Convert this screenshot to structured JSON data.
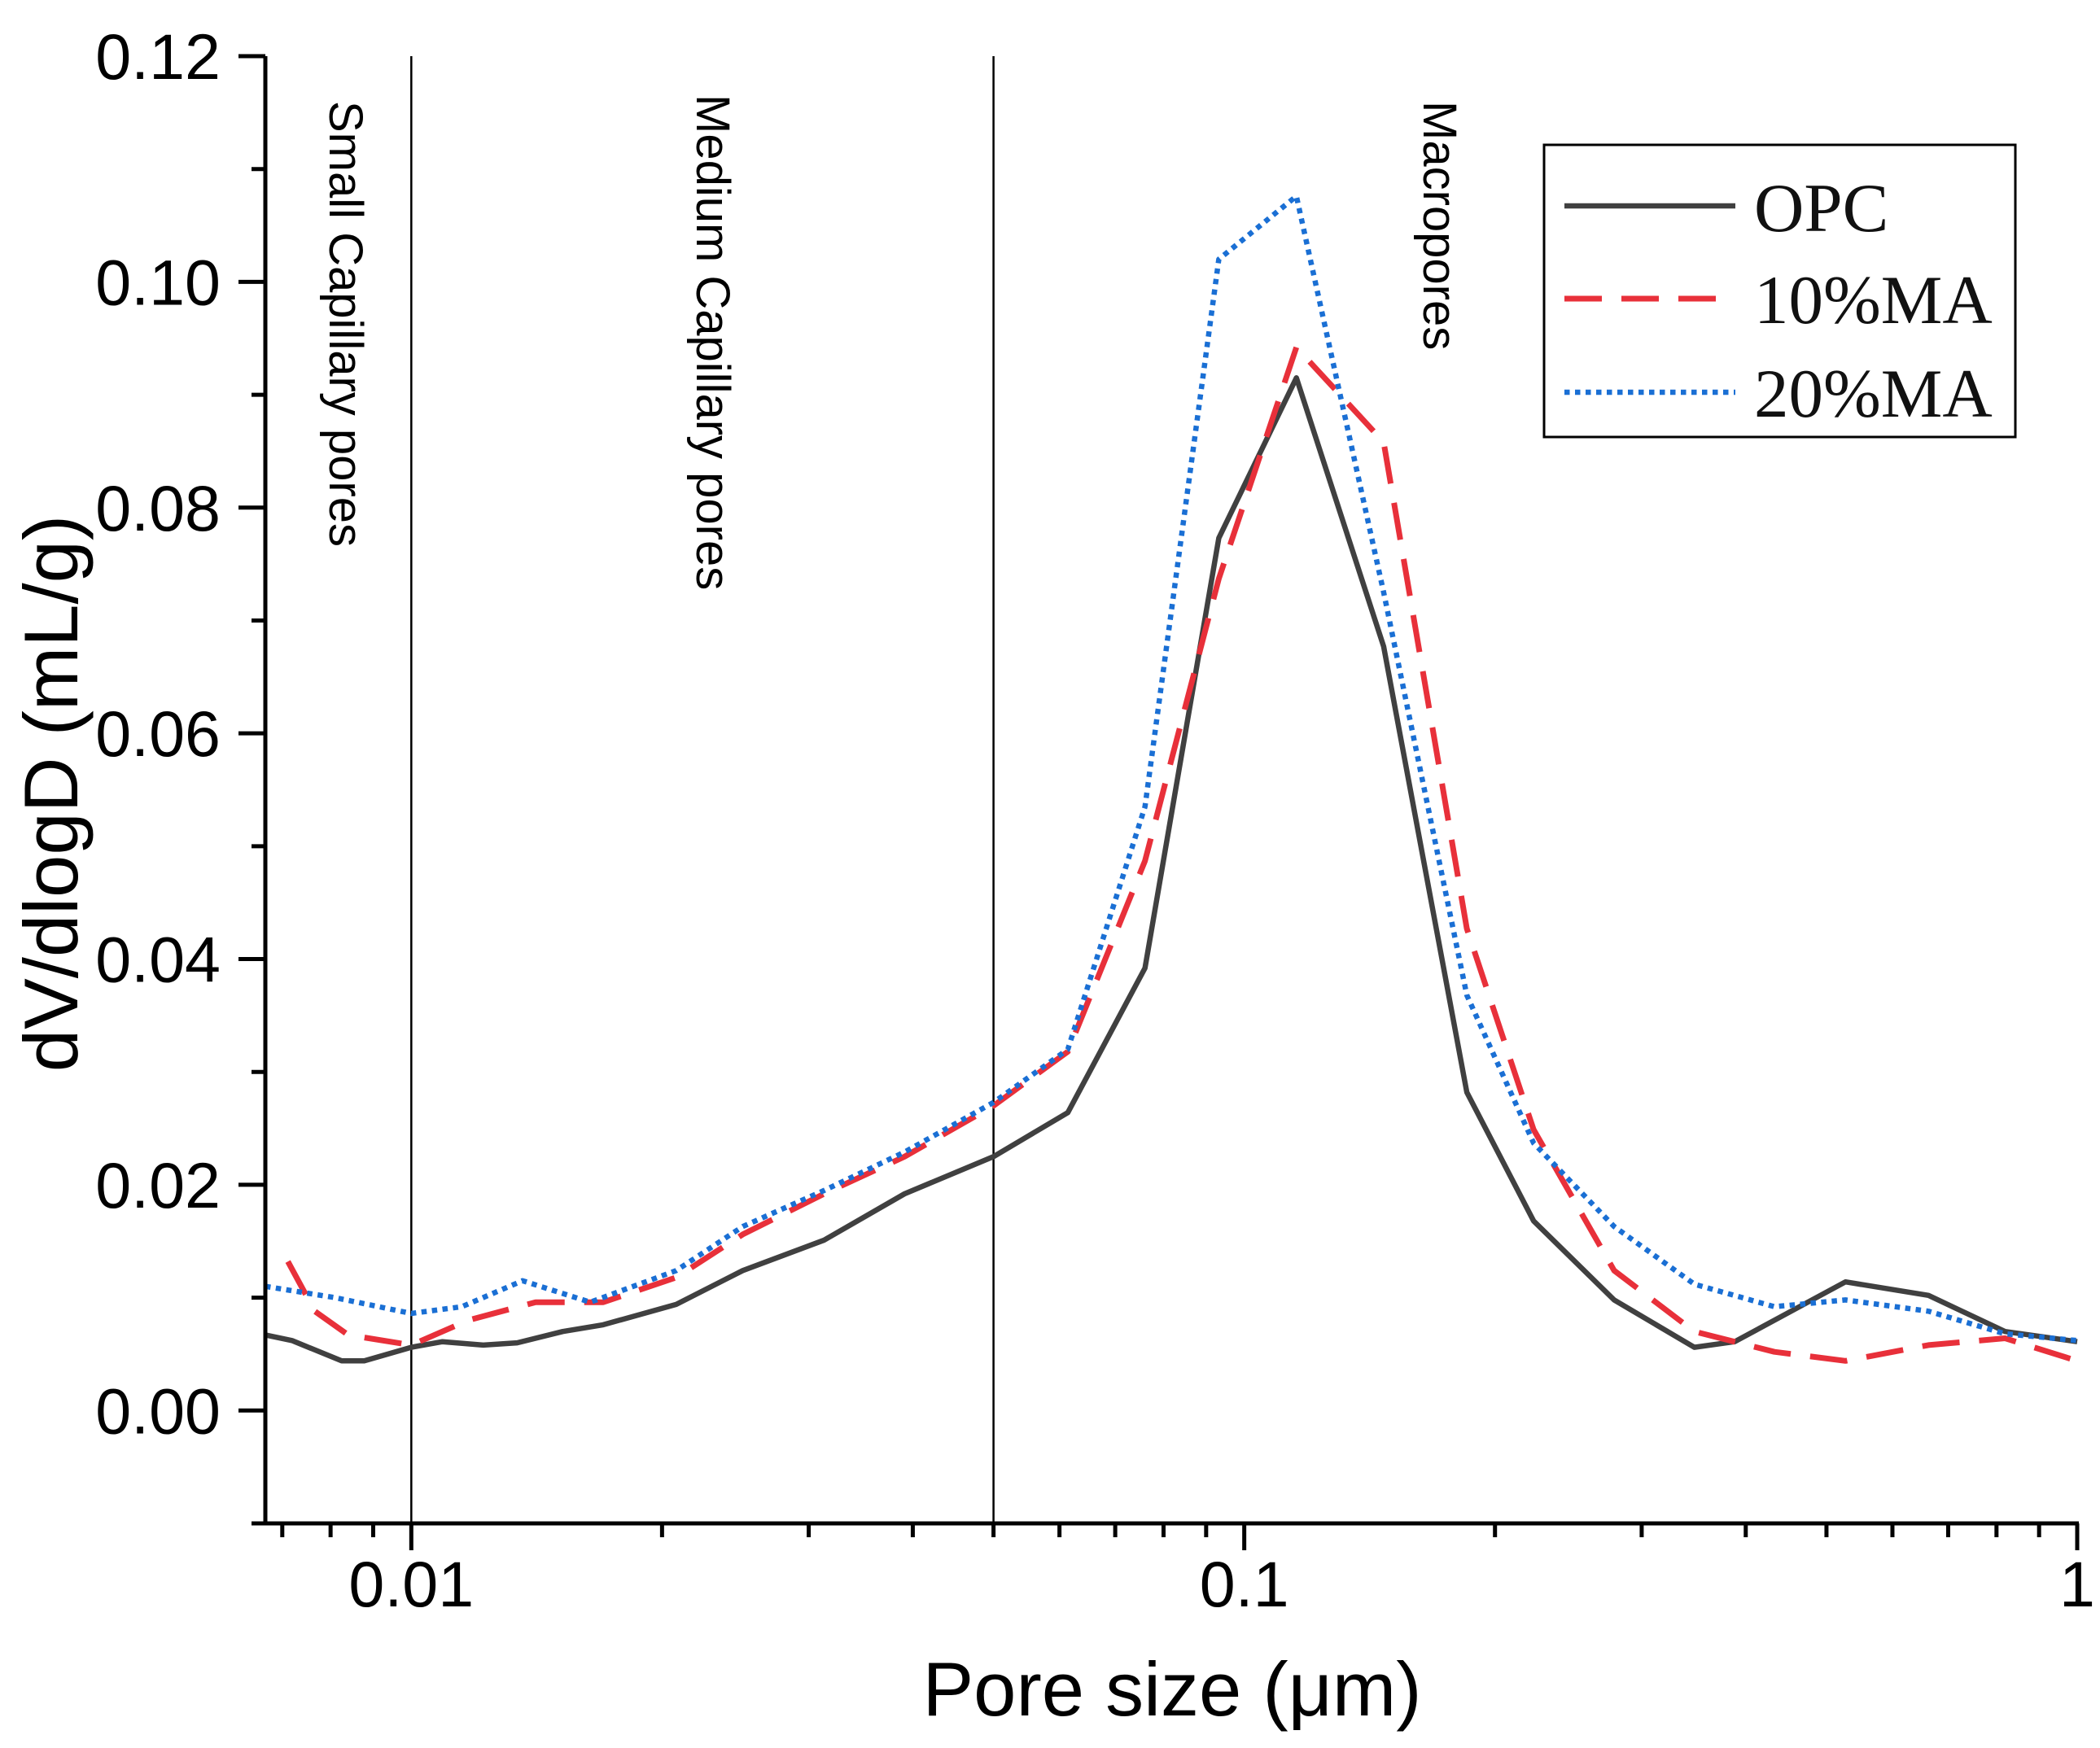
{
  "chart_data": {
    "type": "line",
    "title": "",
    "xlabel": "Pore size (μm)",
    "ylabel": "dV/dlogD (mL/g)",
    "xscale": "log",
    "xlim": [
      0.00668,
      1
    ],
    "ylim": [
      -0.01,
      0.12
    ],
    "grid": false,
    "x_ticks": [
      {
        "value": 0.01,
        "label": "0.01"
      },
      {
        "value": 0.1,
        "label": "0.1"
      },
      {
        "value": 1,
        "label": "1"
      }
    ],
    "y_ticks": [
      {
        "value": 0.0,
        "label": "0.00"
      },
      {
        "value": 0.02,
        "label": "0.02"
      },
      {
        "value": 0.04,
        "label": "0.04"
      },
      {
        "value": 0.06,
        "label": "0.06"
      },
      {
        "value": 0.08,
        "label": "0.08"
      },
      {
        "value": 0.1,
        "label": "0.10"
      },
      {
        "value": 0.12,
        "label": "0.12"
      }
    ],
    "reference_lines_x": [
      0.01,
      0.05
    ],
    "annotations": [
      "Small Capillary pores",
      "Medium Capillary pores",
      "Macropores"
    ],
    "legend": {
      "position": "top-right"
    },
    "series": [
      {
        "name": "OPC",
        "color": "#404040",
        "line_style": "solid",
        "x": [
          0.00668,
          0.00719,
          0.00825,
          0.00878,
          0.01,
          0.0109,
          0.0122,
          0.0134,
          0.0152,
          0.017,
          0.0208,
          0.025,
          0.0313,
          0.0391,
          0.05,
          0.0614,
          0.076,
          0.0932,
          0.1155,
          0.147,
          0.185,
          0.2225,
          0.278,
          0.347,
          0.388,
          0.527,
          0.663,
          0.819,
          1.0
        ],
        "y": [
          0.0067,
          0.0062,
          0.0044,
          0.0044,
          0.0056,
          0.0061,
          0.0058,
          0.006,
          0.007,
          0.0076,
          0.0094,
          0.0124,
          0.0151,
          0.0192,
          0.0225,
          0.0264,
          0.0392,
          0.0773,
          0.0915,
          0.0677,
          0.0282,
          0.0168,
          0.0098,
          0.0056,
          0.0061,
          0.0114,
          0.0102,
          0.007,
          0.0061
        ]
      },
      {
        "name": "10%MA",
        "color": "#e8303a",
        "line_style": "dashed",
        "x": [
          0.00711,
          0.00766,
          0.0084,
          0.01,
          0.0117,
          0.0141,
          0.017,
          0.0208,
          0.025,
          0.0313,
          0.0391,
          0.05,
          0.0614,
          0.076,
          0.0932,
          0.1155,
          0.147,
          0.185,
          0.2225,
          0.278,
          0.347,
          0.433,
          0.527,
          0.663,
          0.819,
          1.0
        ],
        "y": [
          0.0132,
          0.0088,
          0.0067,
          0.0058,
          0.008,
          0.0096,
          0.0096,
          0.0118,
          0.0156,
          0.0192,
          0.0225,
          0.027,
          0.0318,
          0.0487,
          0.0737,
          0.0942,
          0.0858,
          0.0427,
          0.0249,
          0.0124,
          0.007,
          0.0052,
          0.0044,
          0.0058,
          0.0064,
          0.0044
        ]
      },
      {
        "name": "20%MA",
        "color": "#1a6fd4",
        "line_style": "dotted",
        "x": [
          0.00668,
          0.0081,
          0.01,
          0.0115,
          0.0136,
          0.0164,
          0.0208,
          0.025,
          0.0313,
          0.0391,
          0.05,
          0.0614,
          0.076,
          0.0932,
          0.1155,
          0.147,
          0.185,
          0.2225,
          0.278,
          0.347,
          0.433,
          0.527,
          0.663,
          0.819,
          1.0
        ],
        "y": [
          0.011,
          0.01,
          0.0086,
          0.0092,
          0.0115,
          0.0096,
          0.0124,
          0.0163,
          0.0195,
          0.0229,
          0.0273,
          0.032,
          0.0535,
          0.102,
          0.1076,
          0.0725,
          0.0368,
          0.0237,
          0.0163,
          0.0112,
          0.0092,
          0.0098,
          0.0088,
          0.0068,
          0.0062
        ]
      }
    ]
  }
}
